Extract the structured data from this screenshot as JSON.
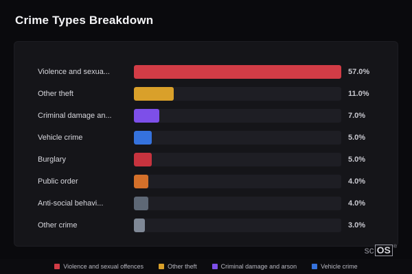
{
  "page": {
    "title": "Crime Types Breakdown"
  },
  "colors": {
    "background": "#0a0a0d",
    "card": "#151519",
    "track": "#1e1e24",
    "title_text": "#f4f4f6",
    "label_text": "#d8d8de",
    "value_text": "#c9c9d0"
  },
  "chart_data": {
    "type": "bar",
    "orientation": "horizontal",
    "title": "Crime Types Breakdown",
    "categories": [
      "Violence and sexua...",
      "Other theft",
      "Criminal damage an...",
      "Vehicle crime",
      "Burglary",
      "Public order",
      "Anti-social behavi...",
      "Other crime"
    ],
    "values": [
      57.0,
      11.0,
      7.0,
      5.0,
      5.0,
      4.0,
      4.0,
      3.0
    ],
    "value_labels": [
      "57.0%",
      "11.0%",
      "7.0%",
      "5.0%",
      "5.0%",
      "4.0%",
      "4.0%",
      "3.0%"
    ],
    "bar_colors": [
      "#d23c46",
      "#d9a02a",
      "#7d4fe9",
      "#3572dd",
      "#c7333e",
      "#d4702a",
      "#5e6876",
      "#7f8896"
    ],
    "unit": "%",
    "xlim": [
      0,
      57
    ],
    "grid": false,
    "legend_position": "bottom"
  },
  "rows": [
    {
      "label": "Violence and sexua...",
      "value": 57.0,
      "value_label": "57.0%",
      "color": "#d23c46"
    },
    {
      "label": "Other theft",
      "value": 11.0,
      "value_label": "11.0%",
      "color": "#d9a02a"
    },
    {
      "label": "Criminal damage an...",
      "value": 7.0,
      "value_label": "7.0%",
      "color": "#7d4fe9"
    },
    {
      "label": "Vehicle crime",
      "value": 5.0,
      "value_label": "5.0%",
      "color": "#3572dd"
    },
    {
      "label": "Burglary",
      "value": 5.0,
      "value_label": "5.0%",
      "color": "#c7333e"
    },
    {
      "label": "Public order",
      "value": 4.0,
      "value_label": "4.0%",
      "color": "#d4702a"
    },
    {
      "label": "Anti-social behavi...",
      "value": 4.0,
      "value_label": "4.0%",
      "color": "#5e6876"
    },
    {
      "label": "Other crime",
      "value": 3.0,
      "value_label": "3.0%",
      "color": "#7f8896"
    }
  ],
  "legend": [
    {
      "label": "Violence and sexual offences",
      "color": "#d23c46"
    },
    {
      "label": "Other theft",
      "color": "#d9a02a"
    },
    {
      "label": "Criminal damage and arson",
      "color": "#7d4fe9"
    },
    {
      "label": "Vehicle crime",
      "color": "#3572dd"
    }
  ],
  "watermark": {
    "prefix": "sc",
    "boxed": "OS",
    "reg": "®"
  }
}
